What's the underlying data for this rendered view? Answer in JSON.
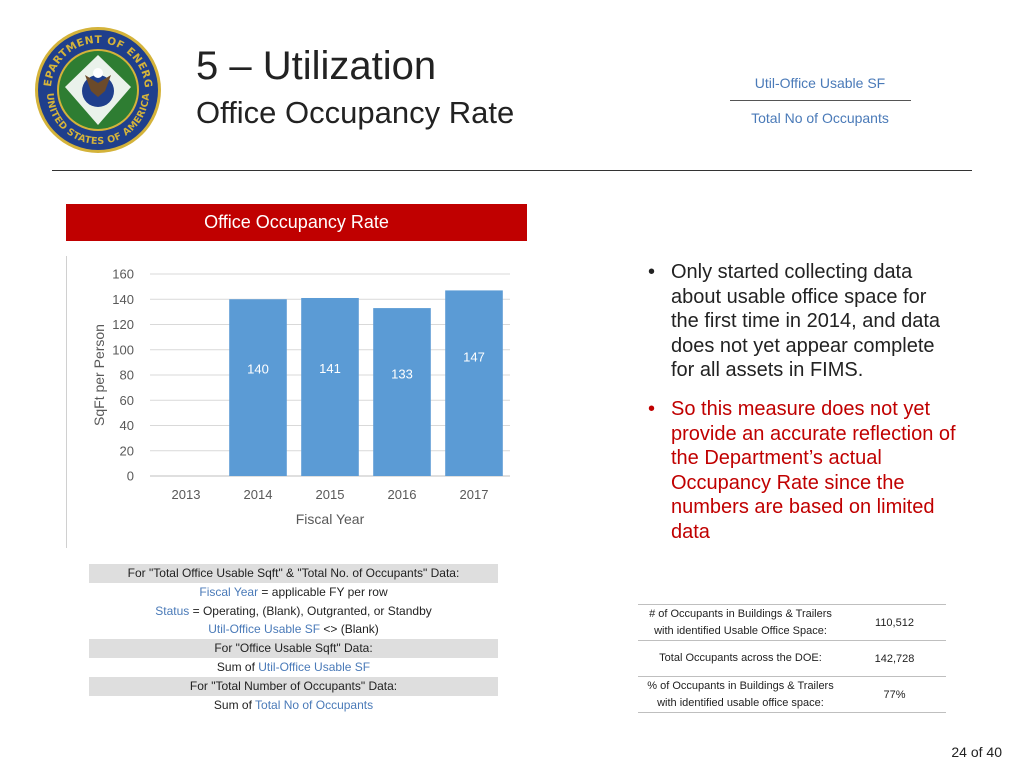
{
  "header": {
    "title": "5 – Utilization",
    "subtitle": "Office Occupancy Rate",
    "formula_numerator": "Util-Office Usable SF",
    "formula_denominator": "Total No of Occupants",
    "logo": {
      "icon": "department-of-energy-seal-icon",
      "text_top": "DEPARTMENT OF ENERGY",
      "text_bottom": "UNITED STATES OF AMERICA",
      "colors": {
        "blue": "#1f3f8c",
        "gold": "#d4b33a",
        "green": "#2e7d32"
      }
    }
  },
  "chart_banner": "Office Occupancy Rate",
  "chart_data": {
    "type": "bar",
    "categories": [
      "2013",
      "2014",
      "2015",
      "2016",
      "2017"
    ],
    "values": [
      null,
      140,
      141,
      133,
      147
    ],
    "data_labels": [
      "",
      "140",
      "141",
      "133",
      "147"
    ],
    "xlabel": "Fiscal Year",
    "ylabel": "SqFt  per Person",
    "ylim": [
      0,
      160
    ],
    "yticks": [
      0,
      20,
      40,
      60,
      80,
      100,
      120,
      140,
      160
    ],
    "grid": true,
    "bar_color": "#5b9bd5"
  },
  "notes": {
    "row1": "For \"Total Office Usable Sqft\" & \"Total No. of Occupants\" Data:",
    "row2_field": "Fiscal Year",
    "row2_rest": " = applicable FY per row",
    "row3_field": "Status",
    "row3_rest": " = Operating, (Blank), Outgranted, or Standby",
    "row4_field": "Util-Office Usable SF",
    "row4_rest": " <> (Blank)",
    "row5": "For \"Office Usable Sqft\" Data:",
    "row6_prefix": "Sum of ",
    "row6_field": "Util-Office Usable SF",
    "row7": "For \"Total Number of Occupants\" Data:",
    "row8_prefix": "Sum of ",
    "row8_field": "Total No of Occupants"
  },
  "bullets": [
    {
      "text": "Only started collecting data about usable office space for the first time in 2014, and data does not yet appear complete for all assets in FIMS.",
      "color": "#222222"
    },
    {
      "text": "So this measure does not yet provide an accurate reflection of the Department’s actual Occupancy Rate since the numbers are based on limited data",
      "color": "#c00000"
    }
  ],
  "bullet_glyph": "•",
  "stats": [
    {
      "label_line1": "# of Occupants in Buildings & Trailers",
      "label_line2": "with identified Usable Office Space:",
      "value": "110,512"
    },
    {
      "label_line1": "Total Occupants across the DOE:",
      "label_line2": "",
      "value": "142,728"
    },
    {
      "label_line1": "% of Occupants in Buildings & Trailers",
      "label_line2": "with identified usable office space:",
      "value": "77%"
    }
  ],
  "page_number": "24 of 40"
}
